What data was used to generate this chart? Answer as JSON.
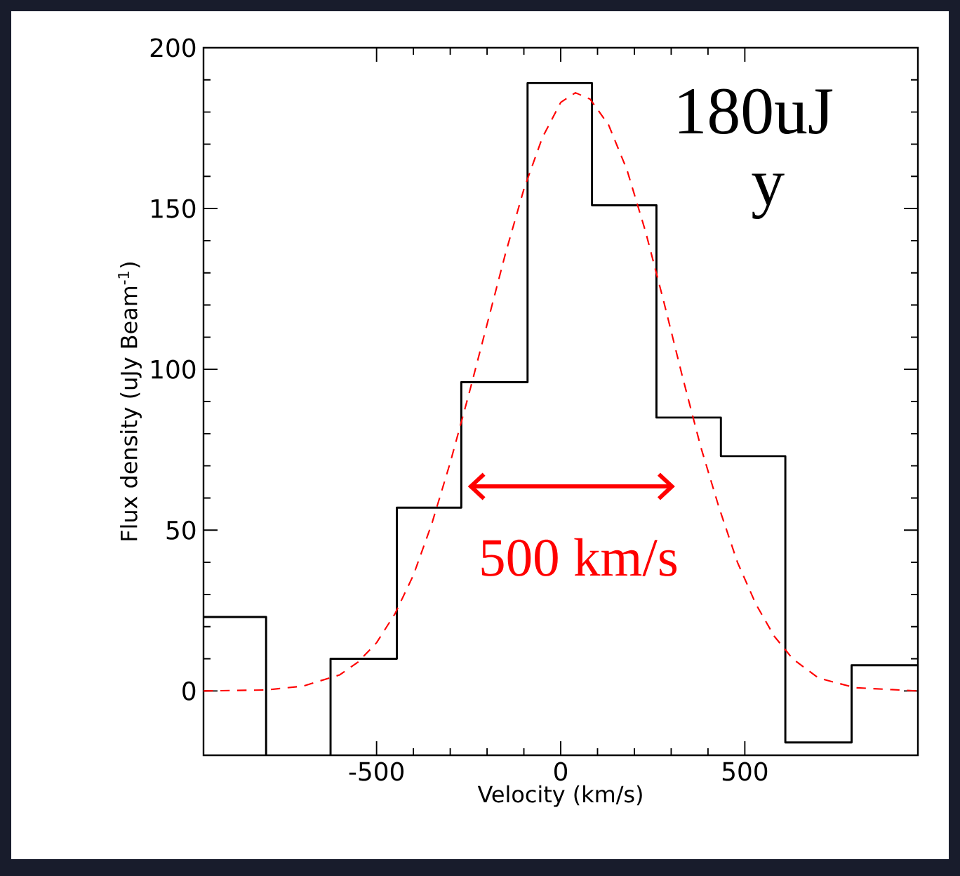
{
  "chart_data": {
    "type": "step",
    "xlabel": "Velocity (km/s)",
    "ylabel": "Flux density (uJy Beam$^{-1}$)",
    "x": [
      -970,
      -800,
      -625,
      -445,
      -270,
      -90,
      85,
      260,
      435,
      610,
      790
    ],
    "values": [
      23,
      null,
      10,
      57,
      96,
      189,
      151,
      85,
      73,
      -16,
      8
    ],
    "color": "#000000",
    "series": [
      {
        "type": "line",
        "color": "#ff0000",
        "line_style": "dashed",
        "x": [
          -970,
          -800,
          -700,
          -600,
          -550,
          -500,
          -450,
          -400,
          -350,
          -300,
          -250,
          -200,
          -150,
          -100,
          -50,
          0,
          40,
          80,
          130,
          180,
          230,
          280,
          330,
          380,
          430,
          480,
          530,
          580,
          630,
          700,
          800,
          970
        ],
        "values": [
          0,
          0.3,
          1.5,
          5,
          9,
          15,
          24,
          36,
          52,
          71,
          92,
          114,
          136,
          156,
          172,
          183,
          186,
          184,
          176,
          162,
          143,
          121,
          98,
          76,
          57,
          40,
          27,
          17,
          10,
          4,
          1,
          0
        ]
      }
    ],
    "annotations": [
      "180uJ",
      "y",
      "500 km/s"
    ],
    "xlim": [
      -970,
      970
    ],
    "ylim": [
      -20,
      200
    ],
    "xticks": [
      -500,
      0,
      500
    ],
    "yticks": [
      0,
      50,
      100,
      150,
      200
    ]
  }
}
